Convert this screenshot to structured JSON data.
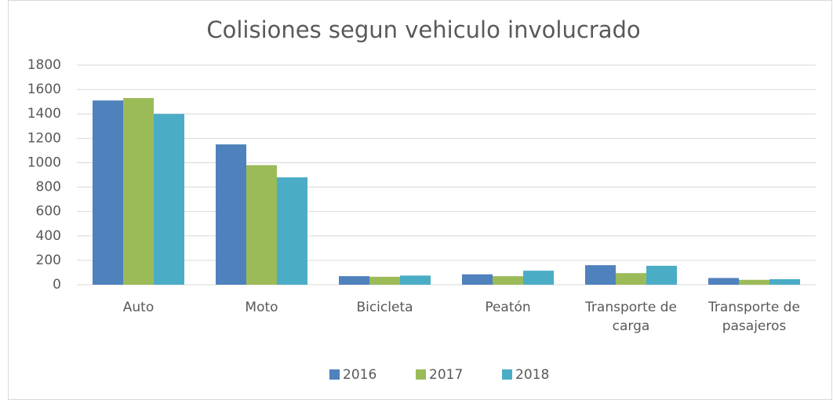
{
  "chart_data": {
    "type": "bar",
    "title": "Colisiones segun vehiculo involucrado",
    "categories": [
      "Auto",
      "Moto",
      "Bicicleta",
      "Peatón",
      "Transporte de carga",
      "Transporte de pasajeros"
    ],
    "series": [
      {
        "name": "2016",
        "color": "#4f81bd",
        "values": [
          1510,
          1150,
          70,
          85,
          160,
          55
        ]
      },
      {
        "name": "2017",
        "color": "#9bbb59",
        "values": [
          1530,
          980,
          65,
          70,
          95,
          40
        ]
      },
      {
        "name": "2018",
        "color": "#4bacc6",
        "values": [
          1400,
          880,
          75,
          115,
          155,
          45
        ]
      }
    ],
    "ylim": [
      0,
      1800
    ],
    "yticks": [
      0,
      200,
      400,
      600,
      800,
      1000,
      1200,
      1400,
      1600,
      1800
    ],
    "grid": true,
    "legend": "bottom"
  }
}
